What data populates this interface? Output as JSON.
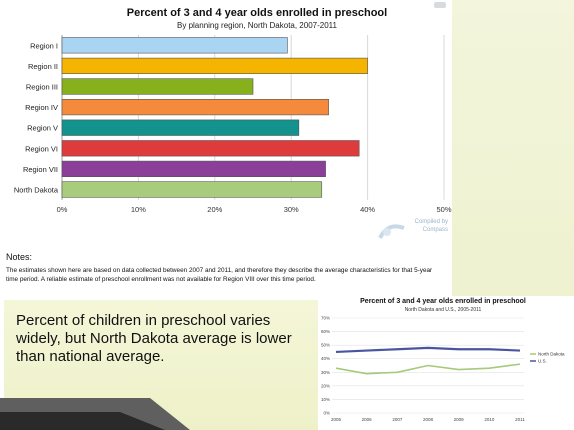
{
  "main_chart": {
    "title": "Percent of 3 and 4 year olds enrolled in preschool",
    "subtitle": "By planning region, North Dakota, 2007-2011",
    "compiled_by": [
      "Compiled by",
      "Compass"
    ]
  },
  "notes": {
    "heading": "Notes:",
    "text": "The estimates shown here are based on data collected between 2007 and 2011, and therefore they describe the average characteristics for that 5-year time period. A reliable estimate of preschool enrollment was not available for Region VIII over this time period."
  },
  "callout": {
    "text": "Percent of children in preschool varies widely, but North Dakota average is lower than national average."
  },
  "small_chart": {
    "title": "Percent of 3 and 4 year olds enrolled in preschool",
    "subtitle": "North Dakota and U.S., 2005-2011"
  },
  "chart_data": [
    {
      "type": "bar",
      "orientation": "horizontal",
      "title": "Percent of 3 and 4 year olds enrolled in preschool",
      "subtitle": "By planning region, North Dakota, 2007-2011",
      "categories": [
        "Region I",
        "Region II",
        "Region III",
        "Region IV",
        "Region V",
        "Region VI",
        "Region VII",
        "North Dakota"
      ],
      "values": [
        29.5,
        40.0,
        25.0,
        34.9,
        31.0,
        38.9,
        34.5,
        34.0
      ],
      "colors": [
        "#a9d4f2",
        "#f5b400",
        "#86b01c",
        "#f58a3d",
        "#14938e",
        "#de3c3c",
        "#8b3f99",
        "#a9cc7c"
      ],
      "xlim": [
        0,
        50
      ],
      "xticks": [
        "0%",
        "10%",
        "20%",
        "30%",
        "40%",
        "50%"
      ],
      "grid": true
    },
    {
      "type": "line",
      "title": "Percent of 3 and 4 year olds enrolled in preschool",
      "subtitle": "North Dakota and U.S., 2005-2011",
      "x": [
        "2005",
        "2006",
        "2007",
        "2008",
        "2009",
        "2010",
        "2011"
      ],
      "series": [
        {
          "name": "North Dakota",
          "values": [
            33,
            29,
            30,
            35,
            32,
            33,
            36
          ],
          "color": "#a8c87a"
        },
        {
          "name": "U.S.",
          "values": [
            45,
            46,
            47,
            48,
            47,
            47,
            46
          ],
          "color": "#4a55a2"
        }
      ],
      "ylim": [
        0,
        70
      ],
      "yticks": [
        "0%",
        "10%",
        "20%",
        "30%",
        "40%",
        "50%",
        "60%",
        "70%"
      ],
      "legend": "right"
    }
  ]
}
